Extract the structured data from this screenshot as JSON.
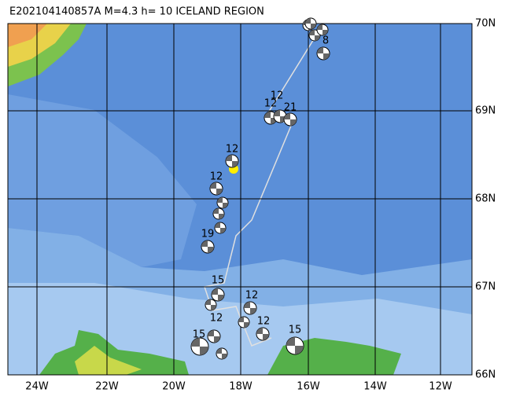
{
  "header": {
    "title": "E202104140857A M=4.3 h= 10 ICELAND REGION"
  },
  "lat_labels": [
    "70N",
    "69N",
    "68N",
    "67N",
    "66N"
  ],
  "lon_labels": [
    "24W",
    "22W",
    "20W",
    "18W",
    "16W",
    "14W",
    "12W"
  ],
  "event_labels": [
    "8",
    "12",
    "12",
    "21",
    "12",
    "12",
    "19",
    "15",
    "12",
    "15",
    "12",
    "12",
    "15"
  ]
}
